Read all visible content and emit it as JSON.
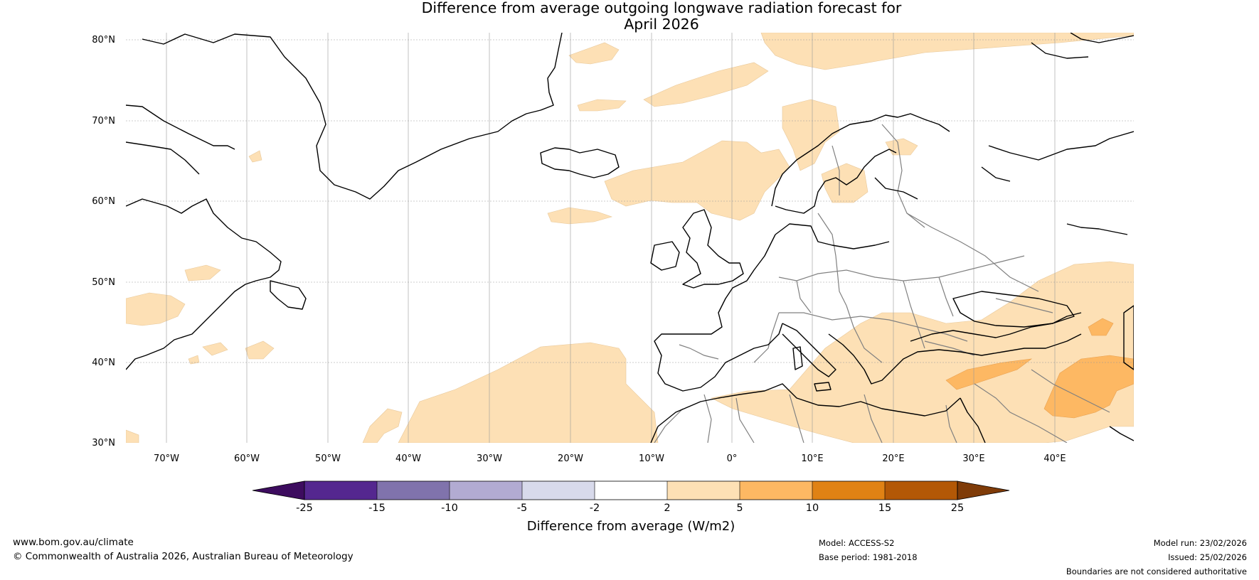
{
  "title_line1": "Difference from average outgoing longwave radiation forecast for",
  "title_line2": "April 2026",
  "lat_labels": [
    "80°N",
    "70°N",
    "60°N",
    "50°N",
    "40°N",
    "30°N"
  ],
  "lon_labels": [
    "70°W",
    "60°W",
    "50°W",
    "40°W",
    "30°W",
    "20°W",
    "10°W",
    "0°",
    "10°E",
    "20°E",
    "30°E",
    "40°E"
  ],
  "colorbar": {
    "ticks": [
      "-25",
      "-15",
      "-10",
      "-5",
      "-2",
      "2",
      "5",
      "10",
      "15",
      "25"
    ],
    "colors": [
      "#3d0c5f",
      "#54278f",
      "#8073ac",
      "#b2abd2",
      "#d8daeb",
      "#ffffff",
      "#fde0b5",
      "#fdb863",
      "#e08214",
      "#b35806",
      "#7f3b08"
    ],
    "label": "Difference from average (W/m2)"
  },
  "footer": {
    "url": "www.bom.gov.au/climate",
    "copyright": "© Commonwealth of Australia 2026, Australian Bureau of Meteorology",
    "model": "Model: ACCESS-S2",
    "base_period": "Base period: 1981-2018",
    "model_run": "Model run: 23/02/2026",
    "issued": "Issued: 25/02/2026",
    "disclaimer": "Boundaries are not considered authoritative"
  }
}
